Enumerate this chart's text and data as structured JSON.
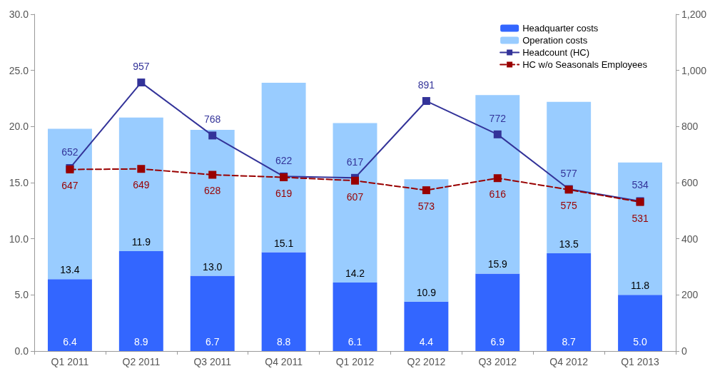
{
  "chart_data": {
    "type": "bar",
    "stacked": true,
    "categories": [
      "Q1 2011",
      "Q2 2011",
      "Q3 2011",
      "Q4 2011",
      "Q1 2012",
      "Q2 2012",
      "Q3 2012",
      "Q4 2012",
      "Q1 2013"
    ],
    "series": [
      {
        "name": "Headquarter costs",
        "color": "#3366ff",
        "values": [
          6.4,
          8.9,
          6.7,
          8.8,
          6.1,
          4.4,
          6.9,
          8.7,
          5.0
        ],
        "value_labels": [
          "6.4",
          "8.9",
          "6.7",
          "8.8",
          "6.1",
          "4.4",
          "6.9",
          "8.7",
          "5.0"
        ]
      },
      {
        "name": "Operation costs",
        "color": "#99ccff",
        "values": [
          13.4,
          11.9,
          13.0,
          15.1,
          14.2,
          10.9,
          15.9,
          13.5,
          11.8
        ],
        "value_labels": [
          "13.4",
          "11.9",
          "13.0",
          "15.1",
          "14.2",
          "10.9",
          "15.9",
          "13.5",
          "11.8"
        ]
      },
      {
        "name": "Headcount (HC)",
        "type": "line",
        "axis": "y2",
        "color": "#333399",
        "line_style": "solid",
        "values": [
          652,
          957,
          768,
          622,
          617,
          891,
          772,
          577,
          534
        ],
        "value_labels": [
          "652",
          "957",
          "768",
          "622",
          "617",
          "891",
          "772",
          "577",
          "534"
        ]
      },
      {
        "name": "HC w/o Seasonals Employees",
        "type": "line",
        "axis": "y2",
        "color": "#990000",
        "line_style": "dashed",
        "values": [
          647,
          649,
          628,
          619,
          607,
          573,
          616,
          575,
          531
        ],
        "value_labels": [
          "647",
          "649",
          "628",
          "619",
          "607",
          "573",
          "616",
          "575",
          "531"
        ]
      }
    ],
    "ylim": [
      0,
      30
    ],
    "yticks": [
      {
        "value": 0,
        "label": "0.0"
      },
      {
        "value": 5,
        "label": "5.0"
      },
      {
        "value": 10,
        "label": "10.0"
      },
      {
        "value": 15,
        "label": "15.0"
      },
      {
        "value": 20,
        "label": "20.0"
      },
      {
        "value": 25,
        "label": "25.0"
      },
      {
        "value": 30,
        "label": "30.0"
      }
    ],
    "y2lim": [
      0,
      1200
    ],
    "y2ticks": [
      0,
      200,
      400,
      600,
      800,
      {
        "value": 1000,
        "label": "1,000"
      },
      {
        "value": 1200,
        "label": "1,200"
      }
    ],
    "marker": "square",
    "grid": false,
    "legend": "top right"
  }
}
